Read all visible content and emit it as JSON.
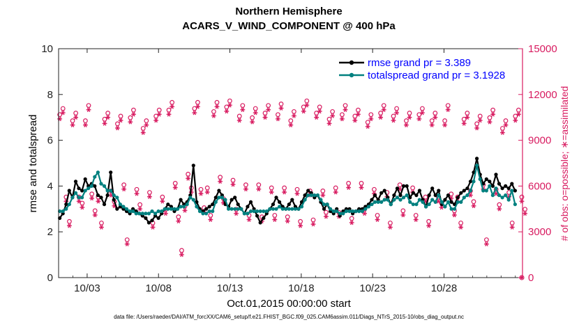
{
  "chart_data": {
    "type": "line",
    "title": "Northern Hemisphere",
    "subtitle": "ACARS_V_WIND_COMPONENT @ 400 hPa",
    "xlabel": "Oct.01,2015 00:00:00 start",
    "ylabel": "rmse and totalspread",
    "ylabel_right": "# of obs: o=possible; ∗=assimilated",
    "footnote": "data file: /Users/raeder/DAI/ATM_forcXX/CAM6_setup/f.e21.FHIST_BGC.f09_025.CAM6assim.011/Diags_NTrS_2015-10/obs_diag_output.nc",
    "xlim": [
      1,
      33.5
    ],
    "x_ticks": [
      3,
      8,
      13,
      18,
      23,
      28
    ],
    "x_tick_labels": [
      "10/03",
      "10/08",
      "10/13",
      "10/18",
      "10/23",
      "10/28"
    ],
    "ylim": [
      0,
      10
    ],
    "y_ticks": [
      "0",
      "2",
      "4",
      "6",
      "8",
      "10"
    ],
    "ylim_right": [
      0,
      15000
    ],
    "y_ticks_right": [
      "0",
      "3000",
      "6000",
      "9000",
      "12000",
      "15000"
    ],
    "colors": {
      "rmse": "#000000",
      "spread": "#00807f",
      "obs": "#d81b60"
    },
    "series": [
      {
        "name": "rmse grand pr = 3.389",
        "values": [
          2.6,
          2.8,
          3.2,
          3.8,
          3.5,
          4.2,
          3.9,
          3.8,
          4.3,
          4.0,
          4.1,
          4.0,
          3.6,
          3.5,
          3.2,
          3.6,
          4.6,
          3.4,
          3.0,
          3.1,
          3.0,
          2.9,
          2.8,
          3.0,
          2.9,
          2.8,
          2.7,
          2.6,
          2.4,
          2.5,
          2.7,
          2.6,
          2.8,
          3.0,
          3.2,
          3.1,
          2.9,
          3.0,
          3.4,
          3.2,
          3.3,
          3.6,
          4.9,
          3.3,
          3.0,
          2.9,
          3.0,
          3.1,
          3.2,
          3.5,
          3.8,
          3.6,
          3.2,
          3.1,
          3.4,
          3.5,
          3.2,
          3.0,
          2.8,
          3.1,
          3.3,
          3.0,
          2.7,
          2.4,
          2.6,
          2.8,
          3.0,
          3.2,
          3.5,
          3.3,
          3.1,
          3.0,
          3.2,
          3.4,
          3.1,
          3.0,
          3.3,
          3.6,
          3.8,
          3.7,
          3.5,
          3.6,
          3.3,
          3.0,
          3.2,
          2.9,
          2.8,
          3.0,
          2.7,
          2.9,
          3.0,
          3.0,
          2.8,
          2.9,
          3.0,
          3.0,
          3.1,
          3.2,
          3.4,
          3.6,
          3.4,
          3.7,
          3.8,
          3.5,
          3.2,
          3.6,
          3.9,
          3.6,
          4.0,
          4.0,
          3.5,
          3.7,
          3.6,
          3.8,
          3.4,
          3.1,
          3.6,
          3.9,
          3.6,
          3.8,
          3.2,
          3.4,
          3.6,
          3.3,
          3.2,
          3.5,
          3.7,
          3.8,
          3.9,
          4.2,
          4.6,
          5.2,
          4.5,
          4.1,
          4.3,
          4.2,
          4.0,
          4.5,
          4.1,
          3.9,
          4.0,
          3.9,
          4.1,
          3.8
        ]
      },
      {
        "name": "totalspread grand pr = 3.1928",
        "values": [
          2.9,
          2.9,
          3.0,
          3.2,
          3.5,
          3.7,
          3.5,
          3.5,
          3.8,
          3.9,
          4.0,
          4.4,
          4.6,
          4.1,
          4.0,
          3.8,
          3.8,
          3.6,
          3.5,
          3.2,
          3.1,
          3.0,
          2.9,
          2.9,
          2.8,
          2.8,
          2.8,
          2.8,
          2.8,
          2.9,
          2.8,
          2.9,
          2.9,
          3.0,
          3.0,
          3.0,
          3.0,
          3.0,
          3.1,
          3.1,
          3.2,
          3.5,
          3.4,
          3.1,
          2.9,
          2.8,
          2.8,
          2.9,
          2.9,
          3.3,
          3.5,
          3.5,
          3.4,
          3.0,
          3.0,
          3.0,
          3.0,
          3.0,
          2.8,
          2.8,
          2.9,
          2.9,
          2.9,
          2.9,
          2.9,
          2.9,
          3.0,
          3.0,
          3.0,
          3.1,
          3.0,
          3.0,
          3.0,
          3.0,
          3.0,
          3.0,
          3.1,
          3.4,
          3.6,
          3.6,
          3.6,
          3.6,
          3.4,
          3.2,
          3.2,
          3.0,
          2.9,
          2.9,
          2.8,
          2.8,
          2.9,
          2.9,
          2.9,
          2.9,
          2.9,
          2.9,
          3.0,
          3.1,
          3.2,
          3.3,
          3.3,
          3.3,
          3.4,
          3.4,
          3.2,
          3.4,
          3.5,
          3.4,
          3.5,
          3.6,
          3.3,
          3.2,
          3.2,
          3.4,
          3.3,
          3.1,
          3.2,
          3.4,
          3.3,
          3.6,
          3.3,
          3.1,
          3.3,
          3.0,
          3.0,
          3.3,
          3.3,
          3.5,
          3.6,
          3.8,
          4.2,
          4.9,
          4.3,
          3.8,
          3.8,
          4.0,
          3.6,
          3.9,
          3.6,
          3.5,
          3.6,
          3.4,
          3.8,
          3.2
        ]
      }
    ],
    "obs_pattern": [
      10400,
      10800,
      5000,
      3400,
      10000,
      10500,
      5000,
      4600,
      10000,
      11000,
      5200,
      4100,
      5000,
      3300,
      10100,
      10500,
      5400,
      4700,
      9800,
      10300,
      5800,
      2200,
      10200,
      10700,
      5500,
      4500,
      9500,
      10000,
      5300,
      3300,
      10300,
      10700,
      5000,
      4200,
      10700,
      11200,
      5900,
      3700,
      1500,
      4400,
      6500,
      5600,
      10800,
      11200,
      5500,
      4300,
      5600,
      3800,
      10600,
      11200,
      6300,
      4900,
      10900,
      11300,
      6100,
      4200,
      10300,
      11000,
      5800,
      3800,
      10200,
      10800,
      5800,
      3700,
      10500,
      11000,
      5600,
      3800,
      10400,
      11100,
      5600,
      3700,
      10000,
      10600,
      5500,
      3400,
      10900,
      11300,
      5400,
      3500,
      10500,
      10900,
      5400,
      4000,
      10100,
      10600,
      5600,
      4000,
      10400,
      11000,
      5900,
      3600,
      10300,
      10700,
      5900,
      4200,
      9900,
      10400,
      5500,
      3800,
      10500,
      11000,
      5300,
      3300,
      10300,
      10800,
      5800,
      4100,
      10000,
      10500,
      5600,
      3800
    ]
  }
}
